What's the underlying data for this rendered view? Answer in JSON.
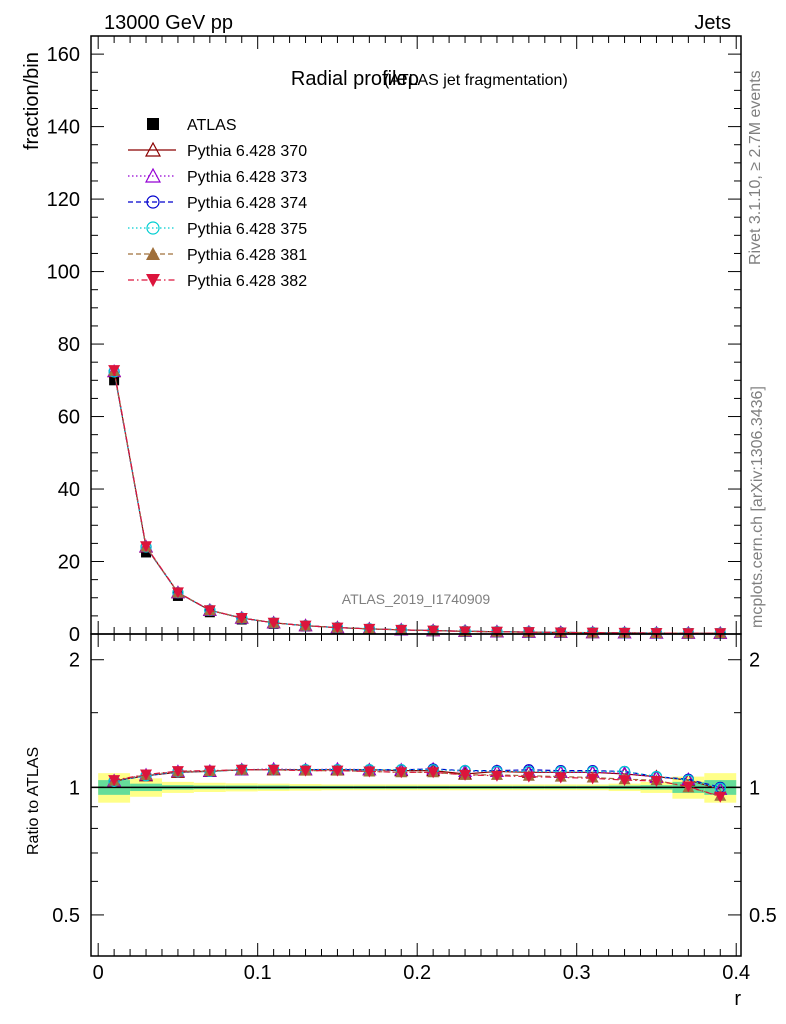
{
  "header": {
    "left": "13000 GeV pp",
    "right": "Jets"
  },
  "side_labels": {
    "rivet": "Rivet 3.1.10, ≥ 2.7M events",
    "mcplots": "mcplots.cern.ch [arXiv:1306.3436]"
  },
  "chart_data": [
    {
      "type": "line",
      "title_main": "Radial profileρ",
      "title_sub": "(ATLAS jet fragmentation)",
      "watermark": "ATLAS_2019_I1740909",
      "xlabel": "r",
      "ylabel": "fraction/bin",
      "xlim": [
        -0.0045,
        0.403
      ],
      "ylim": [
        0,
        165
      ],
      "x_ticks": [
        "0",
        "0.1",
        "0.2",
        "0.3",
        "0.4"
      ],
      "y_ticks": [
        "0",
        "20",
        "40",
        "60",
        "80",
        "100",
        "120",
        "140",
        "160"
      ],
      "x": [
        0.01,
        0.03,
        0.05,
        0.07,
        0.09,
        0.11,
        0.13,
        0.15,
        0.17,
        0.19,
        0.21,
        0.23,
        0.25,
        0.27,
        0.29,
        0.31,
        0.33,
        0.35,
        0.37,
        0.39
      ],
      "legend_position": "top-left",
      "series": [
        {
          "name": "ATLAS",
          "color": "#000000",
          "marker": "square",
          "dash": "none",
          "values": [
            70.0,
            22.5,
            10.5,
            6.0,
            4.0,
            2.8,
            2.1,
            1.6,
            1.3,
            1.05,
            0.85,
            0.7,
            0.58,
            0.48,
            0.4,
            0.34,
            0.29,
            0.25,
            0.22,
            0.2
          ]
        },
        {
          "name": "Pythia 6.428 370",
          "color": "#8b0000",
          "marker": "triangle-open",
          "dash": "solid",
          "values": [
            72.4,
            24.0,
            11.4,
            6.55,
            4.4,
            3.08,
            2.3,
            1.76,
            1.43,
            1.15,
            0.94,
            0.75,
            0.63,
            0.52,
            0.43,
            0.37,
            0.31,
            0.26,
            0.23,
            0.2
          ]
        },
        {
          "name": "Pythia 6.428 373",
          "color": "#9400d3",
          "marker": "triangle-open",
          "dash": "dotted",
          "values": [
            72.5,
            24.1,
            11.4,
            6.55,
            4.4,
            3.09,
            2.31,
            1.77,
            1.43,
            1.16,
            0.94,
            0.76,
            0.63,
            0.52,
            0.43,
            0.37,
            0.31,
            0.26,
            0.23,
            0.2
          ]
        },
        {
          "name": "Pythia 6.428 374",
          "color": "#0000cd",
          "marker": "circle-open",
          "dash": "dashed",
          "values": [
            72.4,
            24.0,
            11.4,
            6.55,
            4.4,
            3.08,
            2.3,
            1.76,
            1.43,
            1.15,
            0.94,
            0.76,
            0.64,
            0.53,
            0.44,
            0.37,
            0.31,
            0.26,
            0.23,
            0.2
          ]
        },
        {
          "name": "Pythia 6.428 375",
          "color": "#00ced1",
          "marker": "circle-open",
          "dash": "dotted",
          "values": [
            72.3,
            24.0,
            11.4,
            6.55,
            4.4,
            3.08,
            2.3,
            1.76,
            1.43,
            1.15,
            0.94,
            0.76,
            0.63,
            0.52,
            0.43,
            0.37,
            0.31,
            0.26,
            0.23,
            0.2
          ]
        },
        {
          "name": "Pythia 6.428 381",
          "color": "#a0703c",
          "marker": "triangle-filled",
          "dash": "dashed",
          "values": [
            72.6,
            24.1,
            11.4,
            6.56,
            4.41,
            3.09,
            2.3,
            1.76,
            1.42,
            1.14,
            0.93,
            0.74,
            0.62,
            0.51,
            0.42,
            0.36,
            0.3,
            0.26,
            0.22,
            0.19
          ]
        },
        {
          "name": "Pythia 6.428 382",
          "color": "#dc143c",
          "marker": "triangledown-filled",
          "dash": "dashdot",
          "values": [
            72.8,
            24.2,
            11.5,
            6.57,
            4.41,
            3.09,
            2.3,
            1.76,
            1.42,
            1.14,
            0.93,
            0.74,
            0.62,
            0.51,
            0.42,
            0.35,
            0.3,
            0.25,
            0.22,
            0.19
          ]
        }
      ]
    },
    {
      "type": "line",
      "ylabel": "Ratio to ATLAS",
      "ylim": [
        0.4,
        2.3
      ],
      "y_scale": "log",
      "y_ticks": [
        "0.5",
        "1",
        "2"
      ],
      "reference": 1.0,
      "x": [
        0.01,
        0.03,
        0.05,
        0.07,
        0.09,
        0.11,
        0.13,
        0.15,
        0.17,
        0.19,
        0.21,
        0.23,
        0.25,
        0.27,
        0.29,
        0.31,
        0.33,
        0.35,
        0.37,
        0.39
      ],
      "uncertainty_bins": [
        0,
        0.02,
        0.04,
        0.06,
        0.08,
        0.1,
        0.12,
        0.14,
        0.16,
        0.18,
        0.2,
        0.22,
        0.24,
        0.26,
        0.28,
        0.3,
        0.32,
        0.34,
        0.36,
        0.38,
        0.4
      ],
      "stat_band": [
        0.04,
        0.02,
        0.012,
        0.01,
        0.01,
        0.01,
        0.008,
        0.008,
        0.008,
        0.008,
        0.008,
        0.008,
        0.008,
        0.008,
        0.008,
        0.008,
        0.01,
        0.012,
        0.03,
        0.04
      ],
      "total_band": [
        0.08,
        0.05,
        0.03,
        0.025,
        0.022,
        0.02,
        0.018,
        0.016,
        0.016,
        0.016,
        0.016,
        0.016,
        0.016,
        0.016,
        0.016,
        0.016,
        0.02,
        0.03,
        0.06,
        0.08
      ],
      "band_colors": {
        "stat": "#66dd99",
        "total": "#ffff88"
      },
      "series": [
        {
          "name": "Pythia 6.428 370",
          "color": "#8b0000",
          "marker": "triangle-open",
          "dash": "solid",
          "values": [
            1.035,
            1.065,
            1.085,
            1.09,
            1.1,
            1.1,
            1.1,
            1.1,
            1.1,
            1.095,
            1.095,
            1.075,
            1.09,
            1.085,
            1.085,
            1.085,
            1.075,
            1.06,
            1.04,
            0.99
          ]
        },
        {
          "name": "Pythia 6.428 373",
          "color": "#9400d3",
          "marker": "triangle-open",
          "dash": "dotted",
          "values": [
            1.036,
            1.07,
            1.09,
            1.092,
            1.1,
            1.105,
            1.1,
            1.105,
            1.1,
            1.1,
            1.105,
            1.09,
            1.09,
            1.09,
            1.085,
            1.085,
            1.08,
            1.055,
            1.045,
            0.99
          ]
        },
        {
          "name": "Pythia 6.428 374",
          "color": "#0000cd",
          "marker": "circle-open",
          "dash": "dashed",
          "values": [
            1.035,
            1.065,
            1.088,
            1.092,
            1.1,
            1.1,
            1.1,
            1.1,
            1.1,
            1.1,
            1.105,
            1.095,
            1.095,
            1.1,
            1.095,
            1.095,
            1.09,
            1.06,
            1.045,
            1.0
          ]
        },
        {
          "name": "Pythia 6.428 375",
          "color": "#00ced1",
          "marker": "circle-open",
          "dash": "dotted",
          "values": [
            1.033,
            1.065,
            1.088,
            1.09,
            1.1,
            1.1,
            1.1,
            1.1,
            1.1,
            1.1,
            1.1,
            1.095,
            1.09,
            1.09,
            1.09,
            1.09,
            1.09,
            1.06,
            1.04,
            0.995
          ]
        },
        {
          "name": "Pythia 6.428 381",
          "color": "#a0703c",
          "marker": "triangle-filled",
          "dash": "dashed",
          "values": [
            1.037,
            1.07,
            1.09,
            1.093,
            1.1,
            1.1,
            1.095,
            1.095,
            1.09,
            1.085,
            1.085,
            1.07,
            1.07,
            1.065,
            1.06,
            1.055,
            1.045,
            1.04,
            1.0,
            0.955
          ]
        },
        {
          "name": "Pythia 6.428 382",
          "color": "#dc143c",
          "marker": "triangledown-filled",
          "dash": "dashdot",
          "values": [
            1.04,
            1.072,
            1.092,
            1.095,
            1.1,
            1.1,
            1.095,
            1.095,
            1.09,
            1.085,
            1.085,
            1.07,
            1.065,
            1.06,
            1.055,
            1.05,
            1.04,
            1.035,
            1.005,
            0.95
          ]
        }
      ]
    }
  ]
}
